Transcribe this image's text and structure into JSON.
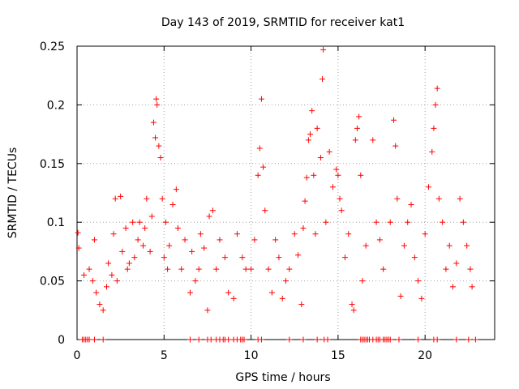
{
  "chart_data": {
    "type": "scatter",
    "title": "Day 143 of 2019, SRMTID for receiver kat1",
    "xlabel": "GPS time / hours",
    "ylabel": "SRMTID / TECUs",
    "xlim": [
      0,
      24
    ],
    "ylim": [
      0,
      0.25
    ],
    "xticks": [
      0,
      5,
      10,
      15,
      20
    ],
    "yticks": [
      0,
      0.05,
      0.1,
      0.15,
      0.2,
      0.25
    ],
    "xtick_labels": [
      "0",
      "5",
      "10",
      "15",
      "20"
    ],
    "ytick_labels": [
      "0",
      "0.05",
      "0.1",
      "0.15",
      "0.2",
      "0.25"
    ],
    "grid": true,
    "marker": "+",
    "color": "#ff0000",
    "series": [
      {
        "name": "SRMTID",
        "points": [
          [
            0.05,
            0.091
          ],
          [
            0.1,
            0.078
          ],
          [
            0.4,
            0.055
          ],
          [
            0.7,
            0.06
          ],
          [
            0.9,
            0.05
          ],
          [
            1.0,
            0.085
          ],
          [
            1.1,
            0.04
          ],
          [
            1.3,
            0.03
          ],
          [
            1.5,
            0.025
          ],
          [
            1.7,
            0.045
          ],
          [
            1.8,
            0.065
          ],
          [
            2.0,
            0.055
          ],
          [
            2.1,
            0.09
          ],
          [
            2.2,
            0.12
          ],
          [
            2.3,
            0.05
          ],
          [
            2.5,
            0.122
          ],
          [
            2.6,
            0.075
          ],
          [
            2.8,
            0.095
          ],
          [
            2.9,
            0.06
          ],
          [
            3.0,
            0.065
          ],
          [
            3.2,
            0.1
          ],
          [
            3.3,
            0.07
          ],
          [
            3.5,
            0.085
          ],
          [
            3.6,
            0.1
          ],
          [
            3.8,
            0.08
          ],
          [
            3.9,
            0.095
          ],
          [
            4.0,
            0.12
          ],
          [
            4.2,
            0.075
          ],
          [
            4.3,
            0.105
          ],
          [
            4.4,
            0.185
          ],
          [
            4.5,
            0.172
          ],
          [
            4.55,
            0.205
          ],
          [
            4.6,
            0.2
          ],
          [
            4.7,
            0.165
          ],
          [
            4.8,
            0.155
          ],
          [
            4.9,
            0.12
          ],
          [
            5.0,
            0.07
          ],
          [
            5.1,
            0.1
          ],
          [
            5.2,
            0.06
          ],
          [
            5.3,
            0.08
          ],
          [
            5.5,
            0.115
          ],
          [
            5.7,
            0.128
          ],
          [
            5.8,
            0.095
          ],
          [
            6.0,
            0.06
          ],
          [
            6.2,
            0.085
          ],
          [
            6.5,
            0.04
          ],
          [
            6.6,
            0.075
          ],
          [
            6.8,
            0.05
          ],
          [
            7.0,
            0.06
          ],
          [
            7.1,
            0.09
          ],
          [
            7.3,
            0.078
          ],
          [
            7.5,
            0.025
          ],
          [
            7.6,
            0.105
          ],
          [
            7.8,
            0.11
          ],
          [
            8.0,
            0.06
          ],
          [
            8.2,
            0.085
          ],
          [
            8.5,
            0.07
          ],
          [
            8.7,
            0.04
          ],
          [
            9.0,
            0.035
          ],
          [
            9.2,
            0.09
          ],
          [
            9.5,
            0.07
          ],
          [
            9.7,
            0.06
          ],
          [
            10.0,
            0.06
          ],
          [
            10.2,
            0.085
          ],
          [
            10.4,
            0.14
          ],
          [
            10.5,
            0.163
          ],
          [
            10.6,
            0.205
          ],
          [
            10.7,
            0.147
          ],
          [
            10.8,
            0.11
          ],
          [
            11.0,
            0.06
          ],
          [
            11.2,
            0.04
          ],
          [
            11.4,
            0.085
          ],
          [
            11.6,
            0.07
          ],
          [
            11.8,
            0.035
          ],
          [
            12.0,
            0.05
          ],
          [
            12.2,
            0.06
          ],
          [
            12.5,
            0.09
          ],
          [
            12.7,
            0.072
          ],
          [
            12.9,
            0.03
          ],
          [
            13.0,
            0.095
          ],
          [
            13.1,
            0.118
          ],
          [
            13.2,
            0.138
          ],
          [
            13.3,
            0.17
          ],
          [
            13.4,
            0.175
          ],
          [
            13.5,
            0.195
          ],
          [
            13.6,
            0.14
          ],
          [
            13.7,
            0.09
          ],
          [
            13.8,
            0.18
          ],
          [
            14.0,
            0.155
          ],
          [
            14.1,
            0.222
          ],
          [
            14.15,
            0.247
          ],
          [
            14.3,
            0.1
          ],
          [
            14.5,
            0.16
          ],
          [
            14.7,
            0.13
          ],
          [
            14.9,
            0.145
          ],
          [
            15.0,
            0.14
          ],
          [
            15.1,
            0.12
          ],
          [
            15.2,
            0.11
          ],
          [
            15.4,
            0.07
          ],
          [
            15.6,
            0.09
          ],
          [
            15.8,
            0.03
          ],
          [
            15.9,
            0.025
          ],
          [
            16.0,
            0.17
          ],
          [
            16.1,
            0.18
          ],
          [
            16.2,
            0.19
          ],
          [
            16.3,
            0.14
          ],
          [
            16.4,
            0.05
          ],
          [
            16.6,
            0.08
          ],
          [
            17.0,
            0.17
          ],
          [
            17.2,
            0.1
          ],
          [
            17.4,
            0.085
          ],
          [
            17.6,
            0.06
          ],
          [
            18.0,
            0.1
          ],
          [
            18.2,
            0.187
          ],
          [
            18.3,
            0.165
          ],
          [
            18.4,
            0.12
          ],
          [
            18.6,
            0.037
          ],
          [
            18.8,
            0.08
          ],
          [
            19.0,
            0.1
          ],
          [
            19.2,
            0.115
          ],
          [
            19.4,
            0.07
          ],
          [
            19.6,
            0.05
          ],
          [
            19.8,
            0.035
          ],
          [
            20.0,
            0.09
          ],
          [
            20.2,
            0.13
          ],
          [
            20.4,
            0.16
          ],
          [
            20.5,
            0.18
          ],
          [
            20.6,
            0.2
          ],
          [
            20.7,
            0.214
          ],
          [
            20.8,
            0.12
          ],
          [
            21.0,
            0.1
          ],
          [
            21.2,
            0.06
          ],
          [
            21.4,
            0.08
          ],
          [
            21.6,
            0.045
          ],
          [
            21.8,
            0.065
          ],
          [
            22.0,
            0.12
          ],
          [
            22.2,
            0.1
          ],
          [
            22.4,
            0.08
          ],
          [
            22.6,
            0.06
          ],
          [
            22.7,
            0.045
          ]
        ],
        "zero_points_x": [
          0.3,
          0.4,
          0.5,
          0.6,
          0.7,
          1.0,
          1.5,
          6.5,
          7.0,
          7.5,
          7.7,
          8.0,
          8.2,
          8.4,
          8.5,
          8.7,
          9.0,
          9.2,
          9.4,
          9.5,
          9.6,
          10.4,
          10.6,
          12.2,
          13.0,
          13.8,
          14.2,
          14.4,
          16.3,
          16.4,
          16.5,
          16.6,
          16.7,
          16.8,
          17.0,
          17.2,
          17.3,
          17.4,
          17.6,
          17.7,
          17.8,
          17.9,
          18.0,
          18.5,
          19.6,
          20.5,
          20.7,
          21.8,
          22.5,
          22.9
        ]
      }
    ]
  }
}
